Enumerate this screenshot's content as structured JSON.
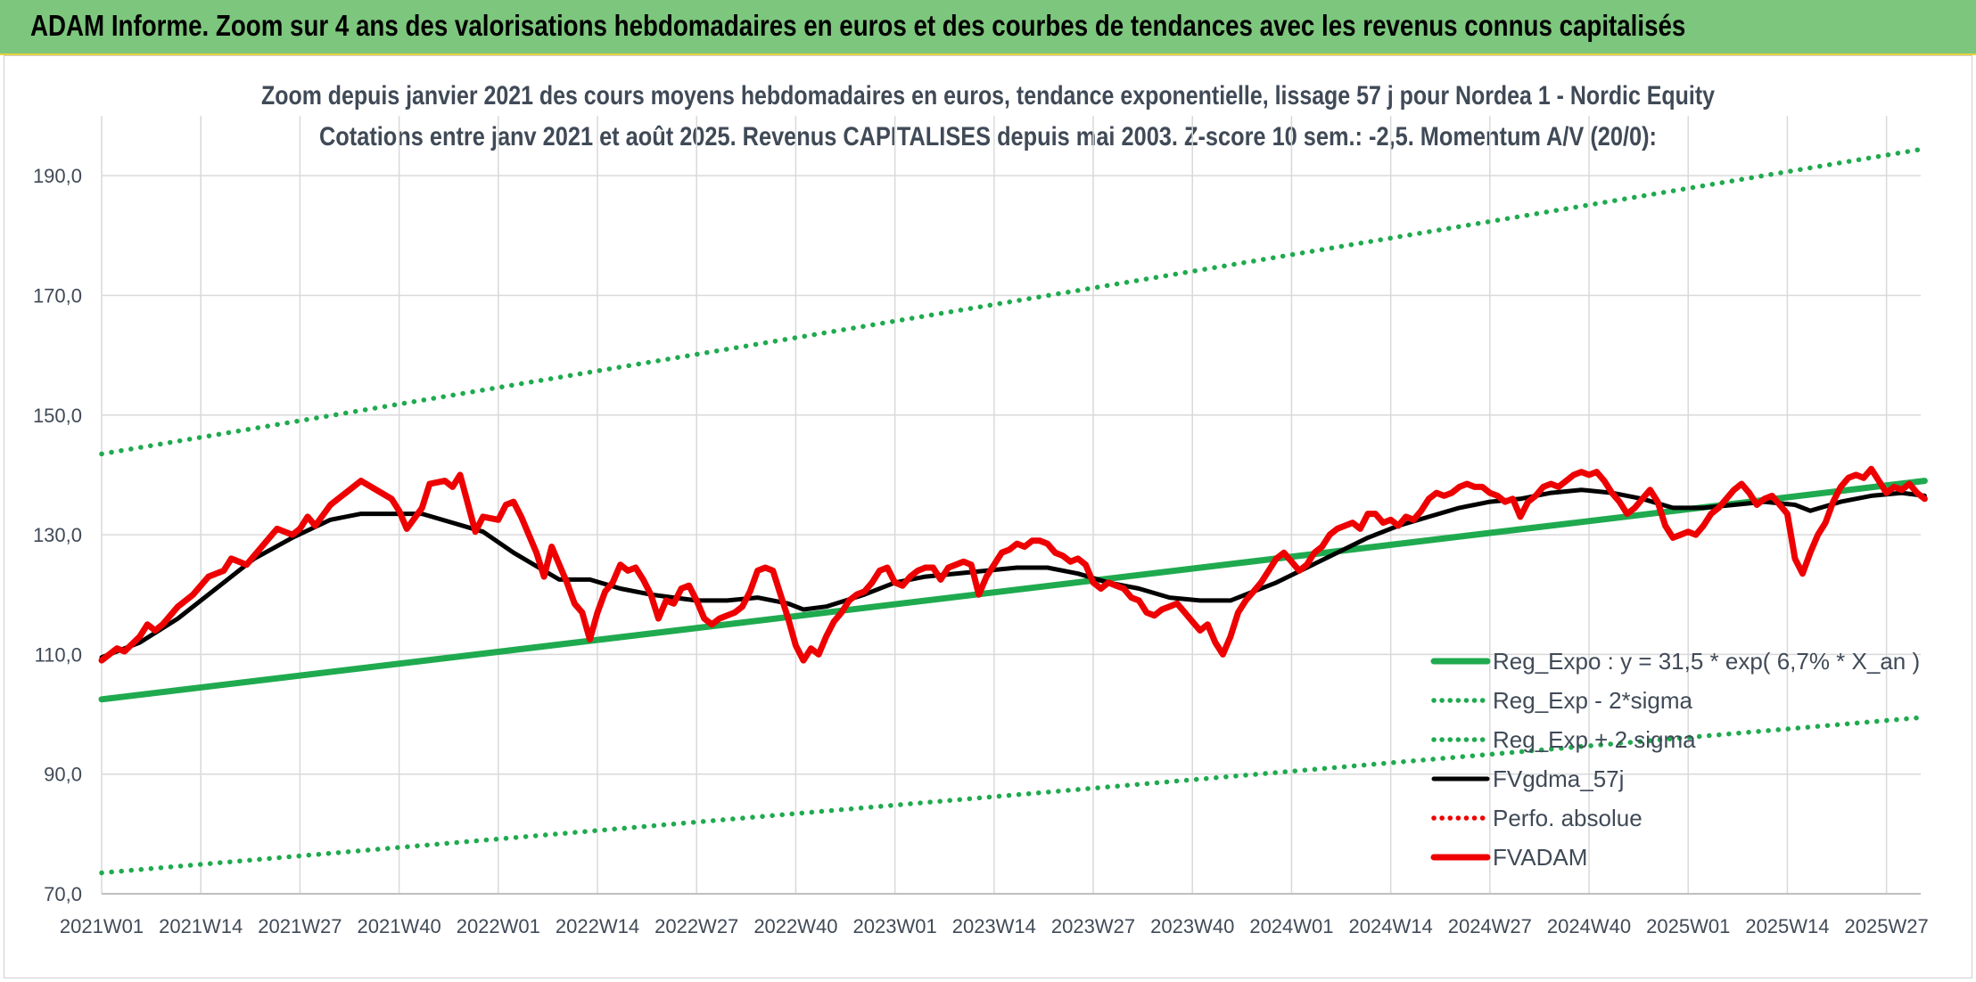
{
  "header": {
    "title": "ADAM Informe. Zoom sur 4 ans des valorisations hebdomadaires en euros et des courbes de tendances avec les revenus connus capitalisés"
  },
  "colors": {
    "banner": "#7dc67d",
    "trend": "#1faa4f",
    "sigma_bands": "#1faa4f",
    "moving_average": "#000000",
    "price": "#ee0000",
    "absolute_perf": "#ee0000",
    "grid": "#d9d9d9",
    "text": "#404a57"
  },
  "chart_data": {
    "type": "line",
    "title_lines": [
      "Zoom depuis janvier 2021 des cours moyens hebdomadaires en euros, tendance exponentielle, lissage 57 j pour Nordea 1 - Nordic Equity",
      "Cotations entre janv 2021 et août 2025. Revenus CAPITALISES depuis mai 2003. Z-score 10 sem.: -2,5. Momentum A/V (20/0):"
    ],
    "x_tick_labels": [
      "2021W01",
      "2021W14",
      "2021W27",
      "2021W40",
      "2022W01",
      "2022W14",
      "2022W27",
      "2022W40",
      "2023W01",
      "2023W14",
      "2023W27",
      "2023W40",
      "2024W01",
      "2024W14",
      "2024W27",
      "2024W40",
      "2025W01",
      "2025W14",
      "2025W27"
    ],
    "x_tick_week_index": [
      0,
      13,
      26,
      39,
      52,
      65,
      78,
      91,
      104,
      117,
      130,
      143,
      156,
      169,
      182,
      195,
      208,
      221,
      234
    ],
    "x_range_weeks": [
      0,
      239
    ],
    "ylim": [
      70,
      200
    ],
    "y_ticks": [
      70,
      90,
      110,
      130,
      150,
      170,
      190
    ],
    "y_tick_labels": [
      "70,0",
      "90,0",
      "110,0",
      "130,0",
      "150,0",
      "170,0",
      "190,0"
    ],
    "grid": true,
    "legend_position": "bottom-right",
    "series": [
      {
        "name": "Reg_Expo : y = 31,5 * exp( 6,7% *  X_an )",
        "style": "solid-thick",
        "color": "#1faa4f",
        "points": [
          [
            0,
            102.5
          ],
          [
            239,
            139.0
          ]
        ]
      },
      {
        "name": "Reg_Exp - 2*sigma",
        "style": "dotted",
        "color": "#1faa4f",
        "points": [
          [
            0,
            73.5
          ],
          [
            239,
            99.5
          ]
        ]
      },
      {
        "name": "Reg_Exp + 2 sigma",
        "style": "dotted",
        "color": "#1faa4f",
        "points": [
          [
            0,
            143.5
          ],
          [
            239,
            194.5
          ]
        ]
      },
      {
        "name": "FVgdma_57j",
        "style": "solid",
        "color": "#000000",
        "points": [
          [
            0,
            109.5
          ],
          [
            5,
            112
          ],
          [
            10,
            116
          ],
          [
            15,
            121
          ],
          [
            20,
            126
          ],
          [
            25,
            129.5
          ],
          [
            30,
            132.5
          ],
          [
            34,
            133.5
          ],
          [
            38,
            133.5
          ],
          [
            42,
            133.5
          ],
          [
            46,
            132
          ],
          [
            50,
            130.5
          ],
          [
            54,
            127
          ],
          [
            58,
            124
          ],
          [
            60,
            122.5
          ],
          [
            64,
            122.5
          ],
          [
            68,
            121
          ],
          [
            72,
            120
          ],
          [
            75,
            119.5
          ],
          [
            78,
            119
          ],
          [
            82,
            119
          ],
          [
            86,
            119.5
          ],
          [
            90,
            118.5
          ],
          [
            92,
            117.5
          ],
          [
            95,
            118
          ],
          [
            100,
            120
          ],
          [
            104,
            122
          ],
          [
            108,
            123
          ],
          [
            112,
            123.5
          ],
          [
            116,
            124
          ],
          [
            120,
            124.5
          ],
          [
            124,
            124.5
          ],
          [
            128,
            123.5
          ],
          [
            132,
            122
          ],
          [
            136,
            121
          ],
          [
            140,
            119.5
          ],
          [
            144,
            119
          ],
          [
            148,
            119
          ],
          [
            150,
            120
          ],
          [
            154,
            122
          ],
          [
            158,
            124.5
          ],
          [
            162,
            127
          ],
          [
            166,
            129.5
          ],
          [
            170,
            131.5
          ],
          [
            174,
            133
          ],
          [
            178,
            134.5
          ],
          [
            182,
            135.5
          ],
          [
            186,
            136
          ],
          [
            190,
            137
          ],
          [
            194,
            137.5
          ],
          [
            198,
            137
          ],
          [
            202,
            136
          ],
          [
            206,
            134.5
          ],
          [
            210,
            134.5
          ],
          [
            214,
            135
          ],
          [
            218,
            135.5
          ],
          [
            222,
            135
          ],
          [
            224,
            134
          ],
          [
            228,
            135.5
          ],
          [
            232,
            136.5
          ],
          [
            236,
            137
          ],
          [
            239,
            136.5
          ]
        ]
      },
      {
        "name": "Perfo. absolue",
        "style": "dotted",
        "color": "#ee0000",
        "points": []
      },
      {
        "name": "FVADAM",
        "style": "solid-thick",
        "color": "#ee0000",
        "points": [
          [
            0,
            109
          ],
          [
            2,
            111
          ],
          [
            3,
            110.5
          ],
          [
            5,
            113
          ],
          [
            6,
            115
          ],
          [
            7,
            114
          ],
          [
            8,
            115
          ],
          [
            10,
            118
          ],
          [
            12,
            120
          ],
          [
            14,
            123
          ],
          [
            16,
            124
          ],
          [
            17,
            126
          ],
          [
            19,
            125
          ],
          [
            21,
            128
          ],
          [
            23,
            131
          ],
          [
            25,
            130
          ],
          [
            26,
            131
          ],
          [
            27,
            133
          ],
          [
            28,
            131.5
          ],
          [
            30,
            135
          ],
          [
            32,
            137
          ],
          [
            34,
            139
          ],
          [
            36,
            137.5
          ],
          [
            38,
            136
          ],
          [
            39,
            134
          ],
          [
            40,
            131
          ],
          [
            42,
            134.5
          ],
          [
            43,
            138.5
          ],
          [
            45,
            139
          ],
          [
            46,
            138
          ],
          [
            47,
            140
          ],
          [
            49,
            130.5
          ],
          [
            50,
            133
          ],
          [
            52,
            132.5
          ],
          [
            53,
            135
          ],
          [
            54,
            135.5
          ],
          [
            55,
            133
          ],
          [
            57,
            127
          ],
          [
            58,
            123
          ],
          [
            59,
            128
          ],
          [
            60,
            125
          ],
          [
            61,
            122
          ],
          [
            62,
            118.5
          ],
          [
            63,
            117
          ],
          [
            64,
            112.5
          ],
          [
            65,
            117
          ],
          [
            66,
            120.5
          ],
          [
            67,
            122
          ],
          [
            68,
            125
          ],
          [
            69,
            124
          ],
          [
            70,
            124.5
          ],
          [
            71,
            122.5
          ],
          [
            72,
            120
          ],
          [
            73,
            116
          ],
          [
            74,
            119
          ],
          [
            75,
            118.5
          ],
          [
            76,
            121
          ],
          [
            77,
            121.5
          ],
          [
            78,
            119
          ],
          [
            79,
            116
          ],
          [
            80,
            115
          ],
          [
            81,
            116
          ],
          [
            82,
            116.5
          ],
          [
            83,
            117
          ],
          [
            84,
            118
          ],
          [
            85,
            120.5
          ],
          [
            86,
            124
          ],
          [
            87,
            124.5
          ],
          [
            88,
            124
          ],
          [
            89,
            120
          ],
          [
            90,
            116
          ],
          [
            91,
            111.5
          ],
          [
            92,
            109
          ],
          [
            93,
            111
          ],
          [
            94,
            110
          ],
          [
            95,
            113
          ],
          [
            96,
            115.5
          ],
          [
            97,
            117
          ],
          [
            98,
            119
          ],
          [
            99,
            120
          ],
          [
            100,
            120.5
          ],
          [
            101,
            122
          ],
          [
            102,
            124
          ],
          [
            103,
            124.5
          ],
          [
            104,
            122
          ],
          [
            105,
            121.5
          ],
          [
            106,
            123
          ],
          [
            107,
            124
          ],
          [
            108,
            124.5
          ],
          [
            109,
            124.5
          ],
          [
            110,
            122.5
          ],
          [
            111,
            124.5
          ],
          [
            112,
            125
          ],
          [
            113,
            125.5
          ],
          [
            114,
            125
          ],
          [
            115,
            120
          ],
          [
            116,
            123
          ],
          [
            117,
            125
          ],
          [
            118,
            127
          ],
          [
            119,
            127.5
          ],
          [
            120,
            128.5
          ],
          [
            121,
            128
          ],
          [
            122,
            129
          ],
          [
            123,
            129
          ],
          [
            124,
            128.5
          ],
          [
            125,
            127
          ],
          [
            126,
            126.5
          ],
          [
            127,
            125.5
          ],
          [
            128,
            126
          ],
          [
            129,
            125
          ],
          [
            130,
            122
          ],
          [
            131,
            121
          ],
          [
            132,
            122
          ],
          [
            133,
            121.5
          ],
          [
            134,
            121
          ],
          [
            135,
            119.5
          ],
          [
            136,
            119
          ],
          [
            137,
            117
          ],
          [
            138,
            116.5
          ],
          [
            139,
            117.5
          ],
          [
            140,
            118
          ],
          [
            141,
            118.5
          ],
          [
            142,
            117
          ],
          [
            143,
            115.5
          ],
          [
            144,
            114
          ],
          [
            145,
            115
          ],
          [
            146,
            112
          ],
          [
            147,
            110
          ],
          [
            148,
            113
          ],
          [
            149,
            117
          ],
          [
            150,
            119
          ],
          [
            151,
            120.5
          ],
          [
            152,
            122
          ],
          [
            153,
            124
          ],
          [
            154,
            126
          ],
          [
            155,
            127
          ],
          [
            156,
            125.5
          ],
          [
            157,
            124
          ],
          [
            158,
            125
          ],
          [
            159,
            127
          ],
          [
            160,
            128
          ],
          [
            161,
            130
          ],
          [
            162,
            131
          ],
          [
            163,
            131.5
          ],
          [
            164,
            132
          ],
          [
            165,
            131
          ],
          [
            166,
            133.5
          ],
          [
            167,
            133.5
          ],
          [
            168,
            132
          ],
          [
            169,
            132.5
          ],
          [
            170,
            131.5
          ],
          [
            171,
            133
          ],
          [
            172,
            132.5
          ],
          [
            173,
            134
          ],
          [
            174,
            136
          ],
          [
            175,
            137
          ],
          [
            176,
            136.5
          ],
          [
            177,
            137
          ],
          [
            178,
            138
          ],
          [
            179,
            138.5
          ],
          [
            180,
            138
          ],
          [
            181,
            138
          ],
          [
            182,
            137
          ],
          [
            183,
            136.5
          ],
          [
            184,
            135.5
          ],
          [
            185,
            136
          ],
          [
            186,
            133
          ],
          [
            187,
            135.5
          ],
          [
            188,
            136.5
          ],
          [
            189,
            138
          ],
          [
            190,
            138.5
          ],
          [
            191,
            138
          ],
          [
            192,
            139
          ],
          [
            193,
            140
          ],
          [
            194,
            140.5
          ],
          [
            195,
            140
          ],
          [
            196,
            140.5
          ],
          [
            197,
            139
          ],
          [
            198,
            137
          ],
          [
            199,
            135.5
          ],
          [
            200,
            133.5
          ],
          [
            201,
            134.5
          ],
          [
            202,
            136
          ],
          [
            203,
            137.5
          ],
          [
            204,
            135.5
          ],
          [
            205,
            131.5
          ],
          [
            206,
            129.5
          ],
          [
            207,
            130
          ],
          [
            208,
            130.5
          ],
          [
            209,
            130
          ],
          [
            210,
            131.5
          ],
          [
            211,
            133.5
          ],
          [
            212,
            134.5
          ],
          [
            213,
            136
          ],
          [
            214,
            137.5
          ],
          [
            215,
            138.5
          ],
          [
            216,
            137
          ],
          [
            217,
            135
          ],
          [
            218,
            136
          ],
          [
            219,
            136.5
          ],
          [
            220,
            135
          ],
          [
            221,
            133.5
          ],
          [
            222,
            126
          ],
          [
            223,
            123.5
          ],
          [
            224,
            127
          ],
          [
            225,
            130
          ],
          [
            226,
            132
          ],
          [
            227,
            135.5
          ],
          [
            228,
            138
          ],
          [
            229,
            139.5
          ],
          [
            230,
            140
          ],
          [
            231,
            139.5
          ],
          [
            232,
            141
          ],
          [
            233,
            139
          ],
          [
            234,
            137
          ],
          [
            235,
            138
          ],
          [
            236,
            137.5
          ],
          [
            237,
            138.5
          ],
          [
            238,
            137
          ],
          [
            239,
            136
          ]
        ]
      }
    ]
  }
}
